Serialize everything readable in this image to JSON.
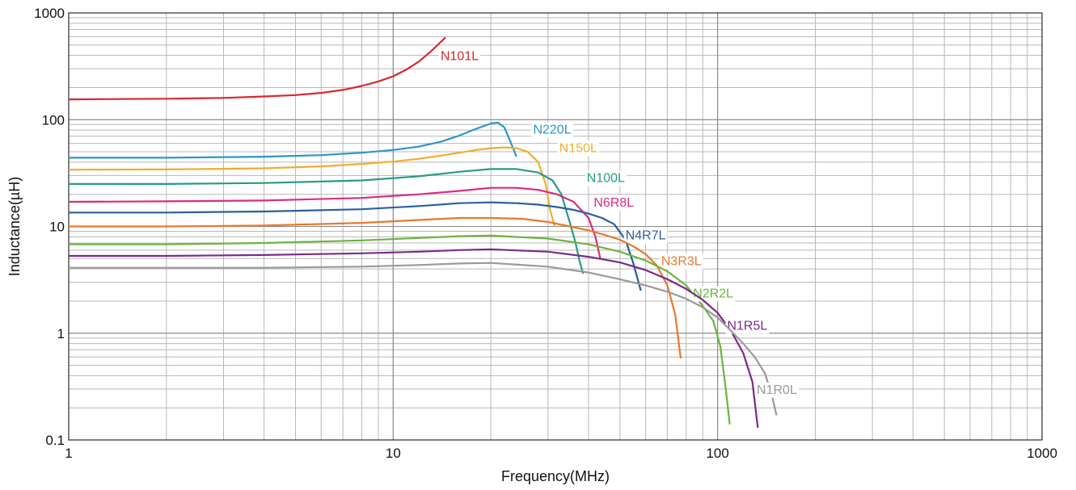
{
  "chart_data": {
    "type": "line",
    "xlabel": "Frequency(MHz)",
    "ylabel": "Inductance(µH)",
    "x_scale": "log",
    "y_scale": "log",
    "xlim": [
      1,
      1000
    ],
    "ylim": [
      0.1,
      1000
    ],
    "x_ticks": [
      {
        "value": 1,
        "label": "1"
      },
      {
        "value": 10,
        "label": "10"
      },
      {
        "value": 100,
        "label": "100"
      },
      {
        "value": 1000,
        "label": "1000"
      }
    ],
    "y_ticks": [
      {
        "value": 0.1,
        "label": "0.1"
      },
      {
        "value": 1,
        "label": "1"
      },
      {
        "value": 10,
        "label": "10"
      },
      {
        "value": 100,
        "label": "100"
      },
      {
        "value": 1000,
        "label": "1000"
      }
    ],
    "grid": true,
    "series": [
      {
        "name": "N101L",
        "color": "#d7282f",
        "label_at": [
          14,
          400
        ],
        "x": [
          1,
          2,
          3,
          4,
          5,
          6,
          7,
          8,
          9,
          10,
          11,
          12,
          13,
          14.5
        ],
        "y": [
          155,
          157,
          160,
          165,
          170,
          178,
          190,
          207,
          228,
          255,
          295,
          350,
          430,
          590
        ]
      },
      {
        "name": "N220L",
        "color": "#2c96cc",
        "label_at": [
          27,
          82
        ],
        "x": [
          1,
          2,
          4,
          6,
          8,
          10,
          12,
          14,
          16,
          18,
          20,
          21,
          22,
          23,
          24
        ],
        "y": [
          44,
          44,
          45,
          46.5,
          49,
          52,
          56,
          62,
          71,
          82,
          92,
          94,
          85,
          62,
          45
        ]
      },
      {
        "name": "N150L",
        "color": "#f0ad2f",
        "label_at": [
          32.5,
          55
        ],
        "x": [
          1,
          2,
          4,
          6,
          8,
          10,
          12,
          14,
          16,
          18,
          20,
          22,
          24,
          26,
          28,
          29.5,
          30.5,
          31.5
        ],
        "y": [
          34,
          34.2,
          35,
          36.5,
          38.5,
          40.5,
          43,
          46,
          49,
          52,
          54,
          55,
          54,
          50,
          40,
          25,
          14,
          10
        ]
      },
      {
        "name": "N100L",
        "color": "#289b85",
        "label_at": [
          39.5,
          29
        ],
        "x": [
          1,
          2,
          4,
          8,
          12,
          16,
          20,
          24,
          28,
          31,
          33,
          35,
          36.5,
          37.5,
          38.5
        ],
        "y": [
          25,
          25,
          25.5,
          27,
          29.5,
          32.5,
          34.5,
          34.5,
          32,
          27,
          20,
          11,
          7,
          4.8,
          3.6
        ]
      },
      {
        "name": "N6R8L",
        "color": "#d82d7f",
        "label_at": [
          41.5,
          17
        ],
        "x": [
          1,
          2,
          4,
          8,
          12,
          16,
          20,
          24,
          28,
          32,
          36,
          40,
          42,
          43.5
        ],
        "y": [
          17,
          17.2,
          17.5,
          18.5,
          20,
          21.5,
          23,
          23,
          22,
          20,
          17,
          12,
          8,
          5
        ]
      },
      {
        "name": "N4R7L",
        "color": "#2a5fa1",
        "label_at": [
          52,
          8.4
        ],
        "x": [
          1,
          2,
          4,
          8,
          12,
          16,
          20,
          24,
          28,
          32,
          36,
          40,
          44,
          48,
          52,
          55,
          58
        ],
        "y": [
          13.5,
          13.5,
          13.8,
          14.5,
          15.5,
          16.5,
          16.8,
          16.5,
          16,
          15.2,
          14.3,
          13.2,
          12,
          10.5,
          7.5,
          4.5,
          2.5
        ]
      },
      {
        "name": "N3R3L",
        "color": "#e9782a",
        "label_at": [
          67,
          4.8
        ],
        "x": [
          1,
          2,
          4,
          8,
          12,
          16,
          20,
          25,
          30,
          35,
          40,
          45,
          50,
          55,
          60,
          65,
          70,
          74,
          77
        ],
        "y": [
          10,
          10,
          10.2,
          10.8,
          11.5,
          12,
          12,
          11.8,
          11,
          10,
          9.2,
          8.3,
          7.5,
          6.5,
          5.5,
          4.3,
          2.8,
          1.5,
          0.58
        ]
      },
      {
        "name": "N2R2L",
        "color": "#6db33f",
        "label_at": [
          84,
          2.4
        ],
        "x": [
          1,
          2,
          4,
          8,
          12,
          16,
          20,
          30,
          40,
          50,
          60,
          70,
          80,
          90,
          97,
          102,
          106,
          109
        ],
        "y": [
          6.8,
          6.8,
          7,
          7.4,
          7.8,
          8.1,
          8.2,
          7.7,
          6.8,
          5.8,
          4.8,
          3.8,
          2.8,
          1.8,
          1.3,
          0.75,
          0.3,
          0.14
        ]
      },
      {
        "name": "N1R5L",
        "color": "#7b2a8a",
        "label_at": [
          107,
          1.2
        ],
        "x": [
          1,
          2,
          4,
          8,
          12,
          16,
          20,
          30,
          40,
          50,
          60,
          70,
          80,
          90,
          100,
          110,
          120,
          128,
          133
        ],
        "y": [
          5.3,
          5.3,
          5.4,
          5.6,
          5.8,
          6,
          6.1,
          5.8,
          5.2,
          4.6,
          3.9,
          3.2,
          2.6,
          2.05,
          1.55,
          1.05,
          0.65,
          0.35,
          0.13
        ]
      },
      {
        "name": "N1R0L",
        "color": "#9a9a9a",
        "label_at": [
          132,
          0.3
        ],
        "x": [
          1,
          2,
          4,
          8,
          12,
          16,
          20,
          30,
          40,
          50,
          60,
          70,
          80,
          90,
          100,
          110,
          120,
          130,
          140,
          147,
          152
        ],
        "y": [
          4.1,
          4.1,
          4.1,
          4.2,
          4.35,
          4.5,
          4.55,
          4.2,
          3.7,
          3.2,
          2.8,
          2.45,
          2.1,
          1.75,
          1.4,
          1.05,
          0.8,
          0.6,
          0.42,
          0.26,
          0.17
        ]
      }
    ]
  }
}
